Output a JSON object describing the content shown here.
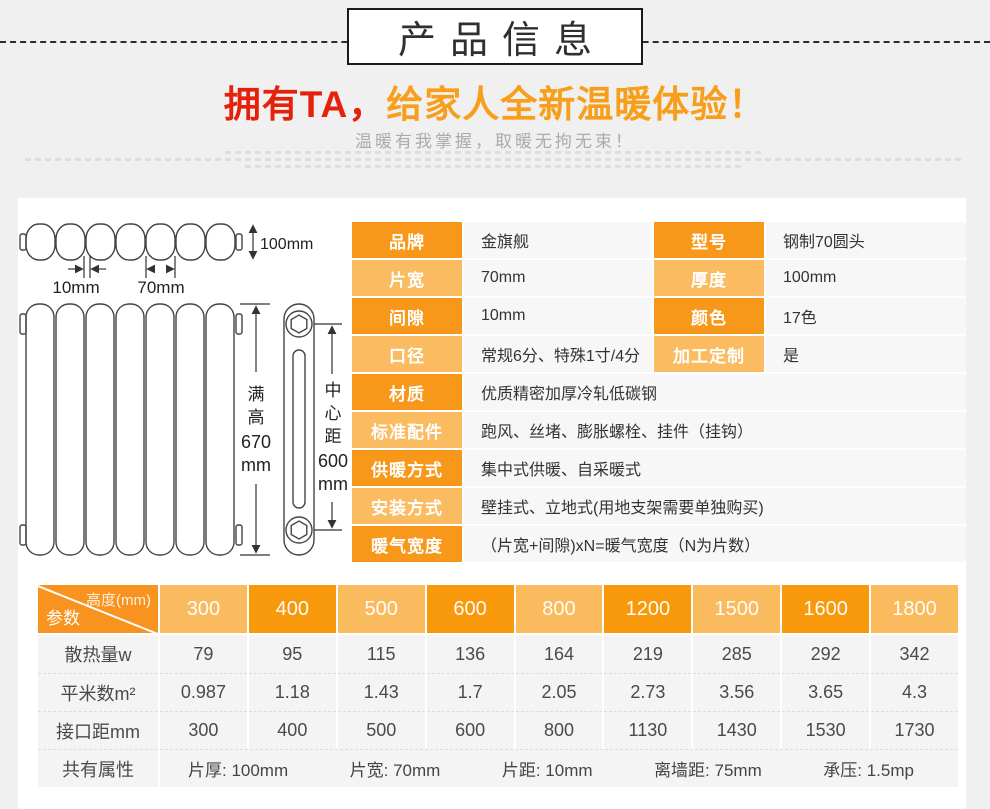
{
  "page": {
    "title_box": "产品信息",
    "headline_red": "拥有TA，",
    "headline_orange": "给家人全新温暖体验！",
    "subtitle": "温暖有我掌握，取暖无拘无束！"
  },
  "colors": {
    "orange_dark": "#f7981b",
    "orange_light": "#fabb61",
    "headline_red": "#e6210b",
    "headline_orange": "#f89e1b"
  },
  "diagram": {
    "dim_depth": "100mm",
    "dim_gap": "10mm",
    "dim_width": "70mm",
    "full_height": [
      "满",
      "高",
      "670",
      "mm"
    ],
    "center_distance": [
      "中",
      "心",
      "距",
      "600",
      "mm"
    ]
  },
  "spec": {
    "rows": [
      {
        "cells": [
          {
            "label": "品牌",
            "value": "金旗舰"
          },
          {
            "label": "型号",
            "value": "钢制70圆头"
          }
        ]
      },
      {
        "cells": [
          {
            "label": "片宽",
            "value": "70mm"
          },
          {
            "label": "厚度",
            "value": "100mm"
          }
        ]
      },
      {
        "cells": [
          {
            "label": "间隙",
            "value": "10mm"
          },
          {
            "label": "颜色",
            "value": "17色"
          }
        ]
      },
      {
        "cells": [
          {
            "label": "口径",
            "value": "常规6分、特殊1寸/4分"
          },
          {
            "label": "加工定制",
            "value": "是"
          }
        ]
      },
      {
        "cells": [
          {
            "label": "材质",
            "value": "优质精密加厚冷轧低碳钢"
          }
        ]
      },
      {
        "cells": [
          {
            "label": "标准配件",
            "value": "跑风、丝堵、膨胀螺栓、挂件（挂钩）"
          }
        ]
      },
      {
        "cells": [
          {
            "label": "供暖方式",
            "value": "集中式供暖、自采暖式"
          }
        ]
      },
      {
        "cells": [
          {
            "label": "安装方式",
            "value": "壁挂式、立地式(用地支架需要单独购买)"
          }
        ]
      },
      {
        "cells": [
          {
            "label": "暖气宽度",
            "value": "（片宽+间隙)xN=暖气宽度（N为片数）"
          }
        ]
      }
    ]
  },
  "params_table": {
    "corner": {
      "top": "高度(mm)",
      "bottom": "参数"
    },
    "heights": [
      "300",
      "400",
      "500",
      "600",
      "800",
      "1200",
      "1500",
      "1600",
      "1800"
    ],
    "rows": [
      {
        "label": "散热量w",
        "values": [
          "79",
          "95",
          "115",
          "136",
          "164",
          "219",
          "285",
          "292",
          "342"
        ]
      },
      {
        "label": "平米数m²",
        "values": [
          "0.987",
          "1.18",
          "1.43",
          "1.7",
          "2.05",
          "2.73",
          "3.56",
          "3.65",
          "4.3"
        ]
      },
      {
        "label": "接口距mm",
        "values": [
          "300",
          "400",
          "500",
          "600",
          "800",
          "1130",
          "1430",
          "1530",
          "1730"
        ]
      }
    ],
    "common": {
      "label": "共有属性",
      "items": [
        "片厚: 100mm",
        "片宽: 70mm",
        "片距: 10mm",
        "离墙距: 75mm",
        "承压: 1.5mp"
      ]
    }
  }
}
